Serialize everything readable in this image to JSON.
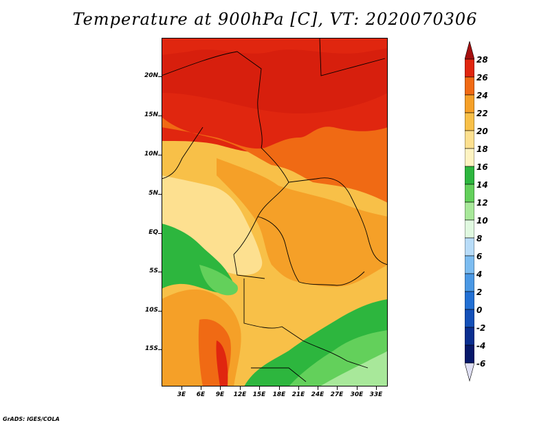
{
  "title": "Temperature at 900hPa [C], VT: 2020070306",
  "credit": "GrADS: IGES/COLA",
  "map": {
    "lat_labels": [
      "20N",
      "15N",
      "10N",
      "5N",
      "EQ",
      "5S",
      "10S",
      "15S"
    ],
    "lon_labels": [
      "3E",
      "6E",
      "9E",
      "12E",
      "15E",
      "18E",
      "21E",
      "24E",
      "27E",
      "30E",
      "33E"
    ]
  },
  "colorbar": {
    "labels": [
      "28",
      "26",
      "24",
      "22",
      "20",
      "18",
      "16",
      "14",
      "12",
      "10",
      "8",
      "6",
      "4",
      "2",
      "0",
      "-2",
      "-4",
      "-6"
    ],
    "colors": [
      "#a50f0f",
      "#e0260f",
      "#f06a14",
      "#f5a028",
      "#f8c048",
      "#fde090",
      "#fef3c2",
      "#2db63e",
      "#63d05b",
      "#a8e89a",
      "#e0f8e0",
      "#b8dcf8",
      "#7cbcf0",
      "#4a98e4",
      "#2270d4",
      "#1450b8",
      "#0a2e90",
      "#06186a",
      "#e0e0f4"
    ]
  }
}
